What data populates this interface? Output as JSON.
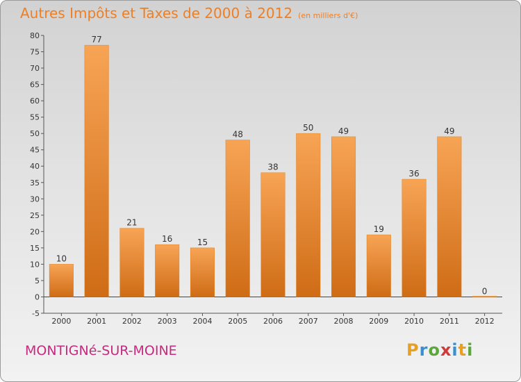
{
  "header": {
    "title": "Autres Impôts et Taxes de 2000 à 2012",
    "unit": "(en milliers d'€)"
  },
  "footer": {
    "commune": "MONTIGNé-SUR-MOINE"
  },
  "logo": {
    "letters": [
      "P",
      "r",
      "o",
      "x",
      "i",
      "t",
      "i"
    ],
    "colors": [
      "#e8a020",
      "#3a8fd0",
      "#5aa83a",
      "#d03a3a",
      "#3a8fd0",
      "#e8a020",
      "#5aa83a"
    ]
  },
  "chart_data": {
    "type": "bar",
    "title": "Autres Impôts et Taxes de 2000 à 2012",
    "subtitle": "(en milliers d'€)",
    "categories": [
      "2000",
      "2001",
      "2002",
      "2003",
      "2004",
      "2005",
      "2006",
      "2007",
      "2008",
      "2009",
      "2010",
      "2011",
      "2012"
    ],
    "values": [
      10,
      77,
      21,
      16,
      15,
      48,
      38,
      50,
      49,
      19,
      36,
      49,
      0
    ],
    "ylim": [
      -5,
      80
    ],
    "yticks": [
      -5,
      0,
      5,
      10,
      15,
      20,
      25,
      30,
      35,
      40,
      45,
      50,
      55,
      60,
      65,
      70,
      75,
      80
    ],
    "grid": false,
    "bar_color": "#f0872c",
    "bar_color_dark": "#cc6a18"
  }
}
